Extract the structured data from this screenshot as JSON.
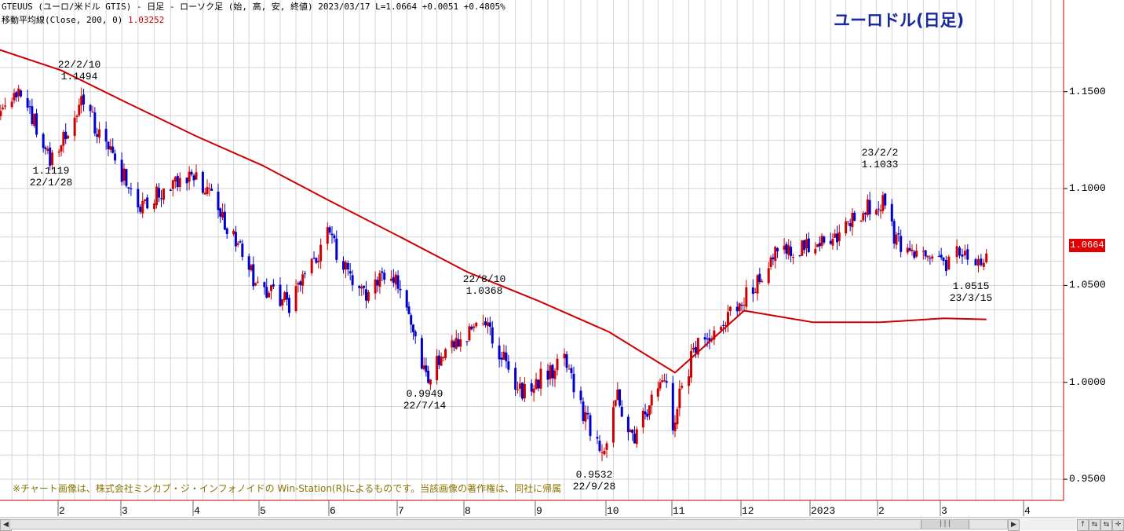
{
  "header": {
    "line1": "GTEUUS (ユーロ/米ドル GTIS) - 日足 - ローソク足 (始, 高, 安, 終値)  2023/03/17 L=1.0664 +0.0051  +0.4805%",
    "ma_label": "移動平均線(Close, 200, 0) ",
    "ma_value": "1.03252"
  },
  "big_title": "ユーロドル(日足)",
  "copyright": "※チャート画像は、株式会社ミンカブ・ジ・インフォノイドの Win-Station(R)によるものです。当該画像の著作権は、同社に帰属",
  "current_price_label": "1.0664",
  "colors": {
    "up": "#cc0000",
    "down": "#0000cc",
    "ma": "#cc0000",
    "title": "#1a2a9c",
    "grid": "#d4d4d4"
  },
  "annotations": [
    {
      "id": "peak-2022-02-10",
      "date": "22/2/10",
      "value": "1.1494",
      "date_first": true
    },
    {
      "id": "low-2022-01-28",
      "date": "22/1/28",
      "value": "1.1119",
      "date_first": false
    },
    {
      "id": "peak-2022-08-10",
      "date": "22/8/10",
      "value": "1.0368",
      "date_first": true
    },
    {
      "id": "low-2022-07-14",
      "date": "22/7/14",
      "value": "0.9949",
      "date_first": false
    },
    {
      "id": "low-2022-09-28",
      "date": "22/9/28",
      "value": "0.9532",
      "date_first": false
    },
    {
      "id": "peak-2023-02-02",
      "date": "23/2/2",
      "value": "1.1033",
      "date_first": true
    },
    {
      "id": "low-2023-03-15",
      "date": "23/3/15",
      "value": "1.0515",
      "date_first": false
    }
  ],
  "scrollbar": {
    "left_arrow": "◀",
    "right_arrow": "▶",
    "thumb": "|||",
    "buttons": [
      "↑",
      "⇆",
      "⇆",
      "✛"
    ]
  },
  "chart_data": {
    "type": "candlestick",
    "title": "ユーロドル(日足)",
    "series_name": "GTEUUS (ユーロ/米ドル GTIS)",
    "ylim": [
      0.9391,
      1.1973
    ],
    "y_ticks": [
      "1.1500",
      "1.1000",
      "1.0500",
      "1.0000",
      "0.9500"
    ],
    "x_tick_labels": [
      "2",
      "3",
      "4",
      "5",
      "6",
      "7",
      "8",
      "9",
      "10",
      "11",
      "12",
      "2023",
      "2",
      "3",
      "4"
    ],
    "x_tick_dates": [
      "2022-02-01",
      "2022-03-01",
      "2022-04-01",
      "2022-05-01",
      "2022-06-01",
      "2022-07-01",
      "2022-08-01",
      "2022-09-01",
      "2022-10-01",
      "2022-11-01",
      "2022-12-01",
      "2023-01-01",
      "2023-02-01",
      "2023-03-01",
      "2023-04-01"
    ],
    "grid": true,
    "anchors": [
      [
        "2022-01-03",
        1.135
      ],
      [
        "2022-01-13",
        1.147
      ],
      [
        "2022-01-20",
        1.134
      ],
      [
        "2022-01-28",
        1.114
      ],
      [
        "2022-02-10",
        1.143
      ],
      [
        "2022-02-24",
        1.12
      ],
      [
        "2022-03-07",
        1.088
      ],
      [
        "2022-03-15",
        1.098
      ],
      [
        "2022-03-31",
        1.108
      ],
      [
        "2022-04-12",
        1.088
      ],
      [
        "2022-04-28",
        1.052
      ],
      [
        "2022-05-13",
        1.04
      ],
      [
        "2022-05-30",
        1.076
      ],
      [
        "2022-06-14",
        1.045
      ],
      [
        "2022-06-27",
        1.058
      ],
      [
        "2022-07-14",
        1.002
      ],
      [
        "2022-07-22",
        1.02
      ],
      [
        "2022-08-10",
        1.03
      ],
      [
        "2022-08-23",
        0.995
      ],
      [
        "2022-09-12",
        1.01
      ],
      [
        "2022-09-28",
        0.96
      ],
      [
        "2022-10-04",
        0.995
      ],
      [
        "2022-10-13",
        0.97
      ],
      [
        "2022-10-26",
        1.005
      ],
      [
        "2022-10-31",
        0.98
      ],
      [
        "2022-11-10",
        1.02
      ],
      [
        "2022-11-22",
        1.03
      ],
      [
        "2022-12-06",
        1.05
      ],
      [
        "2022-12-14",
        1.065
      ],
      [
        "2022-12-30",
        1.07
      ],
      [
        "2023-01-10",
        1.075
      ],
      [
        "2023-01-26",
        1.09
      ],
      [
        "2023-02-02",
        1.092
      ],
      [
        "2023-02-08",
        1.072
      ],
      [
        "2023-02-21",
        1.065
      ],
      [
        "2023-03-01",
        1.06
      ],
      [
        "2023-03-06",
        1.068
      ],
      [
        "2023-03-15",
        1.058
      ],
      [
        "2023-03-17",
        1.0664
      ]
    ],
    "moving_average": {
      "name": "移動平均線(Close, 200, 0)",
      "last_value": 1.03252,
      "points": [
        [
          "2022-01-01",
          1.173
        ],
        [
          "2022-02-01",
          1.161
        ],
        [
          "2022-03-01",
          1.145
        ],
        [
          "2022-04-01",
          1.127
        ],
        [
          "2022-05-01",
          1.112
        ],
        [
          "2022-06-01",
          1.093
        ],
        [
          "2022-07-01",
          1.075
        ],
        [
          "2022-08-01",
          1.057
        ],
        [
          "2022-09-01",
          1.042
        ],
        [
          "2022-10-01",
          1.026
        ],
        [
          "2022-11-01",
          1.005
        ],
        [
          "2022-12-01",
          1.037
        ],
        [
          "2023-01-01",
          1.031
        ],
        [
          "2023-02-01",
          1.031
        ],
        [
          "2023-03-01",
          1.033
        ],
        [
          "2023-03-17",
          1.0325
        ]
      ]
    }
  }
}
